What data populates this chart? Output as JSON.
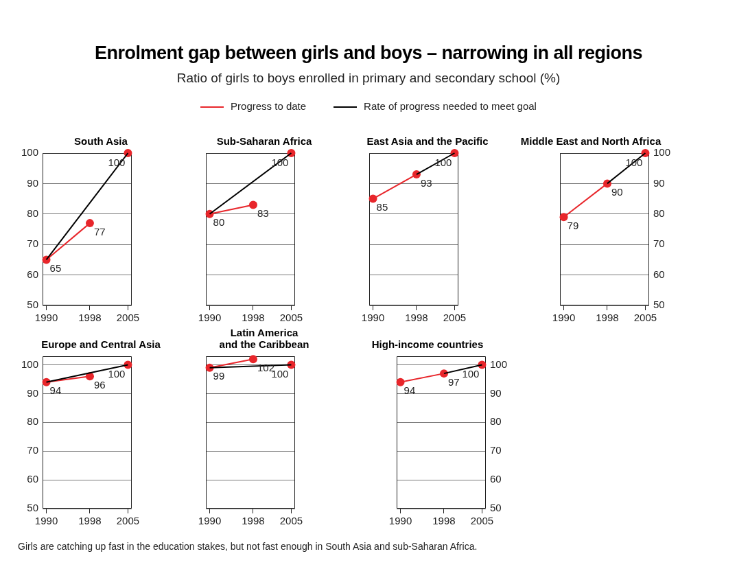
{
  "chart_data": [
    {
      "type": "other",
      "title": "Enrolment gap between girls and boys – narrowing in all regions",
      "subtitle": "Ratio of girls to boys enrolled in primary and secondary school (%)",
      "annotations": [
        "Girls are catching up fast in the education stakes, but not fast enough in South Asia and sub-Saharan Africa."
      ]
    },
    {
      "type": "line",
      "title": "South Asia",
      "x": [
        1990,
        1998,
        2005
      ],
      "xlim": [
        1989.3,
        2005.7
      ],
      "xticks": [
        1990,
        1998,
        2005
      ],
      "ylim": [
        50,
        100
      ],
      "yticks": [
        50,
        60,
        70,
        80,
        90,
        100
      ],
      "grid": "y",
      "legend": "top",
      "series": [
        {
          "name": "Rate of progress needed to meet goal",
          "color": "#000000",
          "marker": "none",
          "values": [
            65,
            null,
            100
          ]
        },
        {
          "name": "Progress to date",
          "color": "#e8262b",
          "marker": "circle",
          "values": [
            65,
            77,
            null
          ],
          "value_labels": [
            "65",
            "77",
            null
          ]
        },
        {
          "color": "#e8262b",
          "marker": "circle",
          "values": [
            null,
            null,
            100
          ],
          "value_labels": [
            null,
            null,
            "100"
          ]
        }
      ]
    },
    {
      "type": "line",
      "title": "Sub-Saharan Africa",
      "x": [
        1990,
        1998,
        2005
      ],
      "xlim": [
        1989.3,
        2005.7
      ],
      "xticks": [
        1990,
        1998,
        2005
      ],
      "ylim": [
        50,
        100
      ],
      "yticks": [
        50,
        60,
        70,
        80,
        90,
        100
      ],
      "grid": "y",
      "tick_labels": "x",
      "series": [
        {
          "color": "#000000",
          "marker": "none",
          "values": [
            80,
            null,
            100
          ]
        },
        {
          "color": "#e8262b",
          "marker": "circle",
          "values": [
            80,
            83,
            null
          ],
          "value_labels": [
            "80",
            "83",
            null
          ]
        },
        {
          "color": "#e8262b",
          "marker": "circle",
          "values": [
            null,
            null,
            100
          ],
          "value_labels": [
            null,
            null,
            "100"
          ]
        }
      ]
    },
    {
      "type": "line",
      "title": "East Asia and the Pacific",
      "x": [
        1990,
        1998,
        2005
      ],
      "xlim": [
        1989.3,
        2005.7
      ],
      "xticks": [
        1990,
        1998,
        2005
      ],
      "ylim": [
        50,
        100
      ],
      "yticks": [
        50,
        60,
        70,
        80,
        90,
        100
      ],
      "grid": "y",
      "tick_labels": "x",
      "series": [
        {
          "color": "#000000",
          "marker": "none",
          "values": [
            null,
            93,
            100
          ]
        },
        {
          "color": "#e8262b",
          "marker": "circle",
          "values": [
            85,
            93,
            null
          ],
          "value_labels": [
            "85",
            "93",
            null
          ]
        },
        {
          "color": "#e8262b",
          "marker": "circle",
          "values": [
            null,
            null,
            100
          ],
          "value_labels": [
            null,
            null,
            "100"
          ]
        }
      ]
    },
    {
      "type": "line",
      "title": "Middle East and North Africa",
      "x": [
        1990,
        1998,
        2005
      ],
      "xlim": [
        1989.3,
        2005.7
      ],
      "xticks": [
        1990,
        1998,
        2005
      ],
      "y2lim": [
        50,
        100
      ],
      "y2ticks": [
        50,
        60,
        70,
        80,
        90,
        100
      ],
      "grid": "y",
      "series": [
        {
          "axis": "y2",
          "color": "#000000",
          "marker": "none",
          "values": [
            null,
            90,
            100
          ]
        },
        {
          "axis": "y2",
          "color": "#e8262b",
          "marker": "circle",
          "values": [
            79,
            90,
            null
          ],
          "value_labels": [
            "79",
            "90",
            null
          ]
        },
        {
          "axis": "y2",
          "color": "#e8262b",
          "marker": "circle",
          "values": [
            null,
            null,
            100
          ],
          "value_labels": [
            null,
            null,
            "100"
          ]
        }
      ]
    },
    {
      "type": "line",
      "title": "Europe and Central Asia",
      "x": [
        1990,
        1998,
        2005
      ],
      "xlim": [
        1989.3,
        2005.7
      ],
      "xticks": [
        1990,
        1998,
        2005
      ],
      "ylim": [
        50,
        103
      ],
      "yticks": [
        50,
        60,
        70,
        80,
        90,
        100
      ],
      "grid": "y",
      "series": [
        {
          "color": "#000000",
          "marker": "none",
          "values": [
            94,
            null,
            100
          ]
        },
        {
          "color": "#e8262b",
          "marker": "circle",
          "values": [
            94,
            96,
            null
          ],
          "value_labels": [
            "94",
            "96",
            null
          ]
        },
        {
          "color": "#e8262b",
          "marker": "circle",
          "values": [
            null,
            null,
            100
          ],
          "value_labels": [
            null,
            null,
            "100"
          ]
        }
      ]
    },
    {
      "type": "line",
      "title": "Latin America\nand the Caribbean",
      "x": [
        1990,
        1998,
        2005
      ],
      "xlim": [
        1989.3,
        2005.7
      ],
      "xticks": [
        1990,
        1998,
        2005
      ],
      "ylim": [
        50,
        103
      ],
      "yticks": [
        50,
        60,
        70,
        80,
        90,
        100
      ],
      "grid": "y",
      "tick_labels": "x",
      "series": [
        {
          "color": "#000000",
          "marker": "none",
          "values": [
            99,
            null,
            100
          ]
        },
        {
          "color": "#e8262b",
          "marker": "circle",
          "values": [
            99,
            102,
            null
          ],
          "value_labels": [
            "99",
            "102",
            null
          ]
        },
        {
          "color": "#e8262b",
          "marker": "circle",
          "values": [
            null,
            null,
            100
          ],
          "value_labels": [
            null,
            null,
            "100"
          ]
        }
      ]
    },
    {
      "type": "line",
      "title": "High-income countries",
      "x": [
        1990,
        1998,
        2005
      ],
      "xlim": [
        1989.3,
        2005.7
      ],
      "xticks": [
        1990,
        1998,
        2005
      ],
      "y2lim": [
        50,
        103
      ],
      "y2ticks": [
        50,
        60,
        70,
        80,
        90,
        100
      ],
      "grid": "y",
      "series": [
        {
          "axis": "y2",
          "color": "#000000",
          "marker": "none",
          "values": [
            null,
            97,
            100
          ]
        },
        {
          "axis": "y2",
          "color": "#e8262b",
          "marker": "circle",
          "values": [
            94,
            97,
            null
          ],
          "value_labels": [
            "94",
            "97",
            null
          ]
        },
        {
          "axis": "y2",
          "color": "#e8262b",
          "marker": "circle",
          "values": [
            null,
            null,
            100
          ],
          "value_labels": [
            null,
            null,
            "100"
          ]
        }
      ]
    }
  ]
}
